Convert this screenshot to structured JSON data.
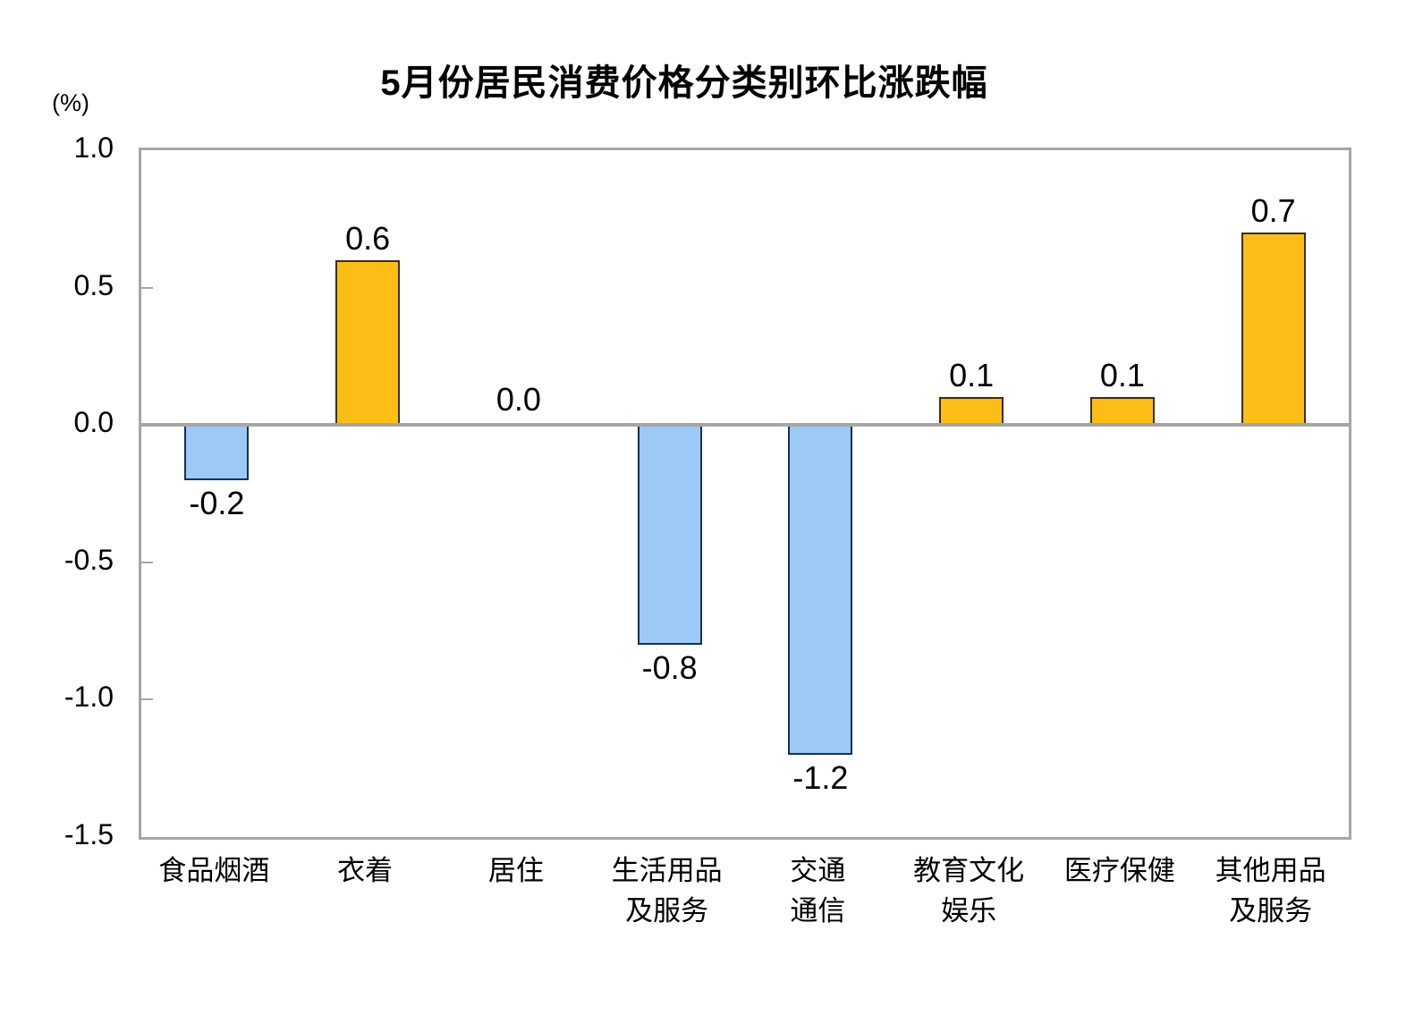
{
  "chart_data": {
    "type": "bar",
    "title": "5月份居民消费价格分类别环比涨跌幅",
    "unit_label": "(%)",
    "categories": [
      "食品烟酒",
      "衣着",
      "居住",
      "生活用品及服务",
      "交通通信",
      "教育文化娱乐",
      "医疗保健",
      "其他用品及服务"
    ],
    "category_lines": [
      [
        "食品烟酒"
      ],
      [
        "衣着"
      ],
      [
        "居住"
      ],
      [
        "生活用品",
        "及服务"
      ],
      [
        "交通",
        "通信"
      ],
      [
        "教育文化",
        "娱乐"
      ],
      [
        "医疗保健"
      ],
      [
        "其他用品",
        "及服务"
      ]
    ],
    "values": [
      -0.2,
      0.6,
      0.0,
      -0.8,
      -1.2,
      0.1,
      0.1,
      0.7
    ],
    "value_labels": [
      "-0.2",
      "0.6",
      "0.0",
      "-0.8",
      "-1.2",
      "0.1",
      "0.1",
      "0.7"
    ],
    "ylim": [
      -1.5,
      1.0
    ],
    "ytick_step": 0.5,
    "yticks": [
      {
        "label": "1.0",
        "value": 1.0
      },
      {
        "label": "0.5",
        "value": 0.5
      },
      {
        "label": "0.0",
        "value": 0.0
      },
      {
        "label": "-0.5",
        "value": -0.5
      },
      {
        "label": "-1.0",
        "value": -1.0
      },
      {
        "label": "-1.5",
        "value": -1.5
      }
    ],
    "xlabel": "",
    "ylabel": "(%)",
    "grid": false,
    "legend": false,
    "colors": {
      "positive_fill": "#FBBD16",
      "positive_border": "#3B2F0B",
      "negative_fill": "#9CC9F5",
      "negative_border": "#16314F",
      "axis_line": "#A6A6A6",
      "text": "#000000",
      "background": "#FFFFFF"
    }
  }
}
